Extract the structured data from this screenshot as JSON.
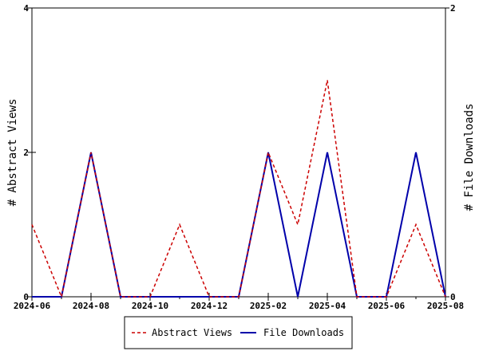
{
  "chart_data": {
    "type": "line",
    "x_tick_labels": [
      "2024-06",
      "2024-08",
      "2024-10",
      "2024-12",
      "2025-02",
      "2025-04",
      "2025-06",
      "2025-08"
    ],
    "x": [
      "2024-06",
      "2024-07",
      "2024-08",
      "2024-09",
      "2024-10",
      "2024-11",
      "2024-12",
      "2025-01",
      "2025-02",
      "2025-03",
      "2025-04",
      "2025-05",
      "2025-06",
      "2025-07",
      "2025-08"
    ],
    "xlim": [
      "2024-06",
      "2025-08"
    ],
    "series": [
      {
        "name": "Abstract Views",
        "axis": "left",
        "color": "#cc0000",
        "dash": "dashed",
        "values": [
          1,
          0,
          2,
          0,
          0,
          1,
          0,
          0,
          2,
          1,
          3,
          0,
          0,
          1,
          0
        ]
      },
      {
        "name": "File Downloads",
        "axis": "right",
        "color": "#0000aa",
        "dash": "solid",
        "values": [
          0,
          0,
          1,
          0,
          0,
          0,
          0,
          0,
          1,
          0,
          1,
          0,
          0,
          1,
          0
        ]
      }
    ],
    "ylabel_left": "# Abstract Views",
    "ylabel_right": "# File Downloads",
    "ylim_left": [
      0,
      4
    ],
    "ylim_right": [
      0,
      2
    ],
    "yticks_left": [
      0,
      2,
      4
    ],
    "yticks_right": [
      0,
      2
    ],
    "grid": false,
    "legend_position": "bottom"
  }
}
